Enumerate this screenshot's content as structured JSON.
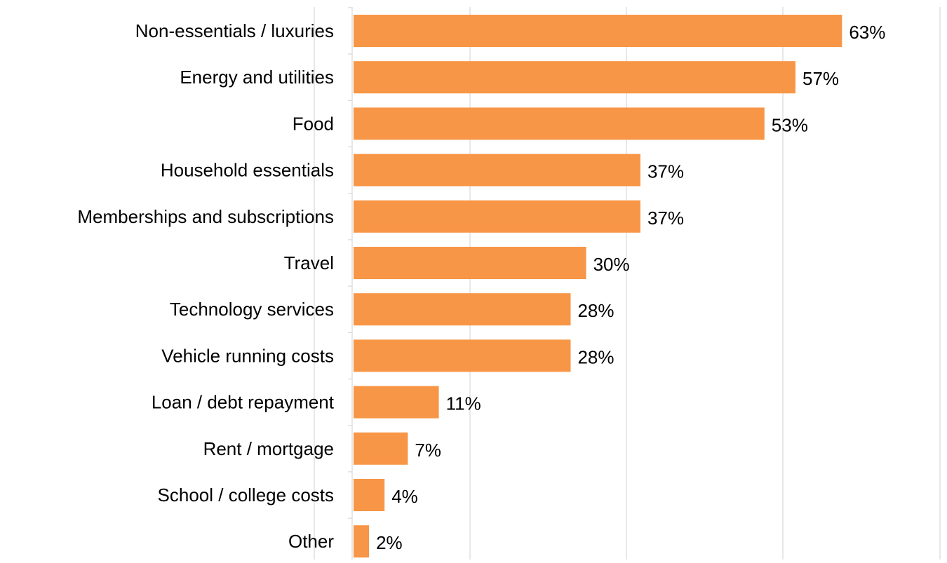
{
  "colors": {
    "bar": "#F79646",
    "grid": "#D9D9D9",
    "text": "#000000"
  },
  "chart_data": {
    "type": "bar",
    "orientation": "horizontal",
    "categories": [
      "Non-essentials / luxuries",
      "Energy and utilities",
      "Food",
      "Household essentials",
      "Memberships and subscriptions",
      "Travel",
      "Technology services",
      "Vehicle running costs",
      "Loan / debt repayment",
      "Rent / mortgage",
      "School / college costs",
      "Other"
    ],
    "values": [
      63,
      57,
      53,
      37,
      37,
      30,
      28,
      28,
      11,
      7,
      4,
      2
    ],
    "value_labels": [
      "63%",
      "57%",
      "53%",
      "37%",
      "37%",
      "30%",
      "28%",
      "28%",
      "11%",
      "7%",
      "4%",
      "2%"
    ],
    "xlim": [
      0,
      76
    ],
    "grid": true,
    "legend": "none",
    "title": "",
    "xlabel": "",
    "ylabel": ""
  }
}
